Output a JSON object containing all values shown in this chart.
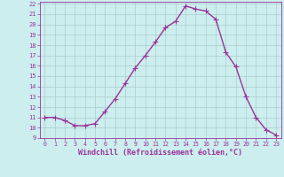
{
  "x": [
    0,
    1,
    2,
    3,
    4,
    5,
    6,
    7,
    8,
    9,
    10,
    11,
    12,
    13,
    14,
    15,
    16,
    17,
    18,
    19,
    20,
    21,
    22,
    23
  ],
  "y": [
    11,
    11,
    10.7,
    10.2,
    10.2,
    10.4,
    11.6,
    12.8,
    14.3,
    15.8,
    17.0,
    18.3,
    19.7,
    20.3,
    21.8,
    21.5,
    21.3,
    20.5,
    17.3,
    15.9,
    13.0,
    11.0,
    9.8,
    9.3
  ],
  "line_color": "#993399",
  "marker": "+",
  "markersize": 4,
  "linewidth": 1.0,
  "bg_color": "#cceeee",
  "grid_color": "#aacccc",
  "xlabel": "Windchill (Refroidissement éolien,°C)",
  "xlabel_color": "#993399",
  "tick_color": "#993399",
  "label_color": "#993399",
  "ylim": [
    9,
    22
  ],
  "xlim": [
    -0.5,
    23.5
  ],
  "yticks": [
    9,
    10,
    11,
    12,
    13,
    14,
    15,
    16,
    17,
    18,
    19,
    20,
    21,
    22
  ],
  "xticks": [
    0,
    1,
    2,
    3,
    4,
    5,
    6,
    7,
    8,
    9,
    10,
    11,
    12,
    13,
    14,
    15,
    16,
    17,
    18,
    19,
    20,
    21,
    22,
    23
  ],
  "tick_fontsize": 5.5,
  "xlabel_fontsize": 6.0
}
